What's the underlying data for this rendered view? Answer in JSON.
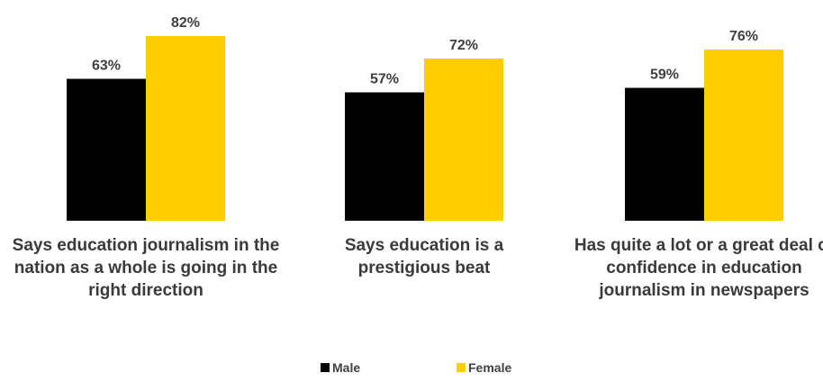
{
  "chart_data": {
    "type": "bar",
    "categories": [
      "Says education journalism in the nation as a whole is going in the right direction",
      "Says education is a prestigious beat",
      "Has quite a lot or a great deal of confidence in education journalism in newspapers"
    ],
    "series": [
      {
        "name": "Male",
        "values": [
          63,
          57,
          59
        ],
        "color": "#000000"
      },
      {
        "name": "Female",
        "values": [
          82,
          72,
          76
        ],
        "color": "#ffcc00"
      }
    ],
    "value_suffix": "%",
    "ylim": [
      0,
      100
    ],
    "grid": false,
    "legend_position": "bottom",
    "title": "",
    "xlabel": "",
    "ylabel": ""
  }
}
